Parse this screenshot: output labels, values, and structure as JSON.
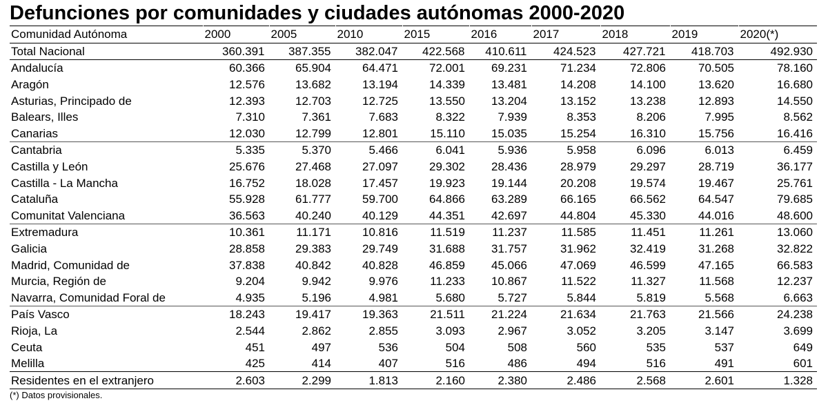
{
  "title": "Defunciones por comunidades y ciudades autónomas 2000-2020",
  "table": {
    "headers": [
      "Comunidad Autónoma",
      "2000",
      "2005",
      "2010",
      "2015",
      "2016",
      "2017",
      "2018",
      "2019",
      "2020(*)"
    ],
    "rows": [
      {
        "name": "Total Nacional",
        "values": [
          "360.391",
          "387.355",
          "382.047",
          "422.568",
          "410.611",
          "424.523",
          "427.721",
          "418.703",
          "492.930"
        ]
      },
      {
        "name": "Andalucía",
        "values": [
          "60.366",
          "65.904",
          "64.471",
          "72.001",
          "69.231",
          "71.234",
          "72.806",
          "70.505",
          "78.160"
        ]
      },
      {
        "name": "Aragón",
        "values": [
          "12.576",
          "13.682",
          "13.194",
          "14.339",
          "13.481",
          "14.208",
          "14.100",
          "13.620",
          "16.680"
        ]
      },
      {
        "name": "Asturias, Principado de",
        "values": [
          "12.393",
          "12.703",
          "12.725",
          "13.550",
          "13.204",
          "13.152",
          "13.238",
          "12.893",
          "14.550"
        ]
      },
      {
        "name": "Balears, Illes",
        "values": [
          "7.310",
          "7.361",
          "7.683",
          "8.322",
          "7.939",
          "8.353",
          "8.206",
          "7.995",
          "8.562"
        ]
      },
      {
        "name": "Canarias",
        "values": [
          "12.030",
          "12.799",
          "12.801",
          "15.110",
          "15.035",
          "15.254",
          "16.310",
          "15.756",
          "16.416"
        ]
      },
      {
        "name": "Cantabria",
        "values": [
          "5.335",
          "5.370",
          "5.466",
          "6.041",
          "5.936",
          "5.958",
          "6.096",
          "6.013",
          "6.459"
        ]
      },
      {
        "name": "Castilla y León",
        "values": [
          "25.676",
          "27.468",
          "27.097",
          "29.302",
          "28.436",
          "28.979",
          "29.297",
          "28.719",
          "36.177"
        ]
      },
      {
        "name": "Castilla - La Mancha",
        "values": [
          "16.752",
          "18.028",
          "17.457",
          "19.923",
          "19.144",
          "20.208",
          "19.574",
          "19.467",
          "25.761"
        ]
      },
      {
        "name": "Cataluña",
        "values": [
          "55.928",
          "61.777",
          "59.700",
          "64.866",
          "63.289",
          "66.165",
          "66.562",
          "64.547",
          "79.685"
        ]
      },
      {
        "name": "Comunitat Valenciana",
        "values": [
          "36.563",
          "40.240",
          "40.129",
          "44.351",
          "42.697",
          "44.804",
          "45.330",
          "44.016",
          "48.600"
        ]
      },
      {
        "name": "Extremadura",
        "values": [
          "10.361",
          "11.171",
          "10.816",
          "11.519",
          "11.237",
          "11.585",
          "11.451",
          "11.261",
          "13.060"
        ]
      },
      {
        "name": "Galicia",
        "values": [
          "28.858",
          "29.383",
          "29.749",
          "31.688",
          "31.757",
          "31.962",
          "32.419",
          "31.268",
          "32.822"
        ]
      },
      {
        "name": "Madrid, Comunidad de",
        "values": [
          "37.838",
          "40.842",
          "40.828",
          "46.859",
          "45.066",
          "47.069",
          "46.599",
          "47.165",
          "66.583"
        ]
      },
      {
        "name": "Murcia, Región de",
        "values": [
          "9.204",
          "9.942",
          "9.976",
          "11.233",
          "10.867",
          "11.522",
          "11.327",
          "11.568",
          "12.237"
        ]
      },
      {
        "name": "Navarra, Comunidad Foral de",
        "values": [
          "4.935",
          "5.196",
          "4.981",
          "5.680",
          "5.727",
          "5.844",
          "5.819",
          "5.568",
          "6.663"
        ]
      },
      {
        "name": "País Vasco",
        "values": [
          "18.243",
          "19.417",
          "19.363",
          "21.511",
          "21.224",
          "21.634",
          "21.763",
          "21.566",
          "24.238"
        ]
      },
      {
        "name": "Rioja, La",
        "values": [
          "2.544",
          "2.862",
          "2.855",
          "3.093",
          "2.967",
          "3.052",
          "3.205",
          "3.147",
          "3.699"
        ]
      },
      {
        "name": "Ceuta",
        "values": [
          "451",
          "497",
          "536",
          "504",
          "508",
          "560",
          "535",
          "537",
          "649"
        ]
      },
      {
        "name": "Melilla",
        "values": [
          "425",
          "414",
          "407",
          "516",
          "486",
          "494",
          "516",
          "491",
          "601"
        ]
      },
      {
        "name": "Residentes en el extranjero",
        "values": [
          "2.603",
          "2.299",
          "1.813",
          "2.160",
          "2.380",
          "2.486",
          "2.568",
          "2.601",
          "1.328"
        ]
      }
    ]
  },
  "note": "(*) Datos provisionales."
}
